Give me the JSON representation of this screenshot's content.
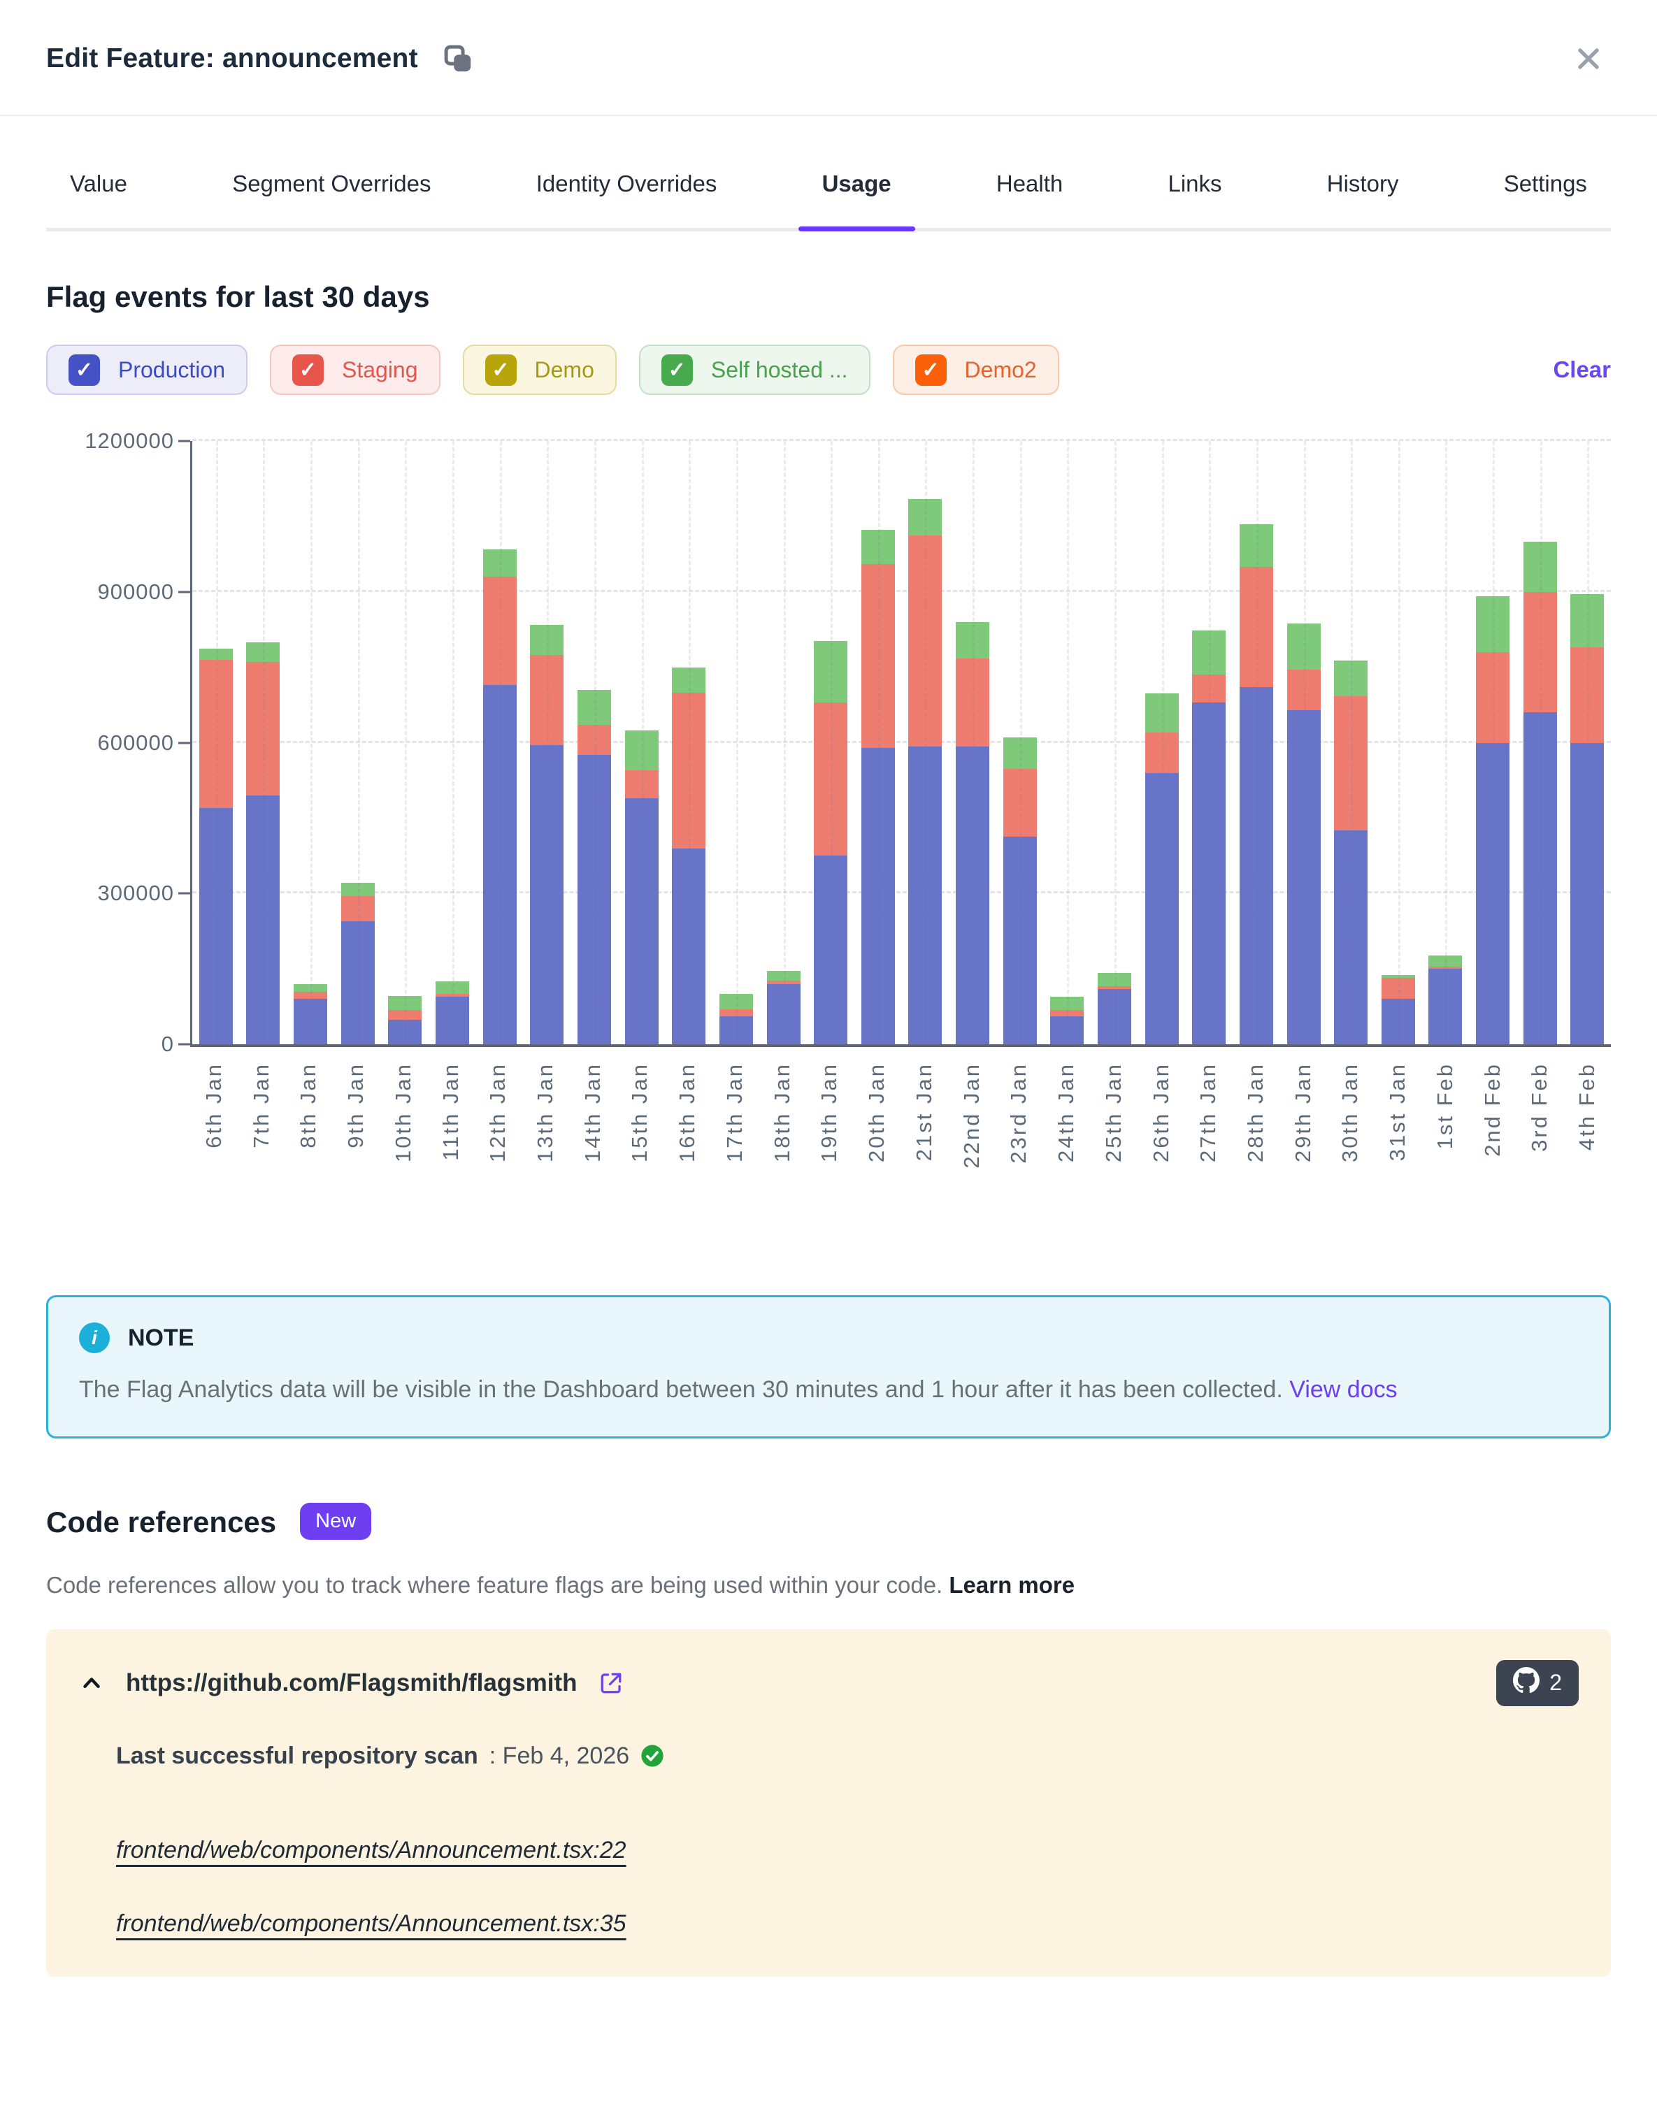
{
  "modal": {
    "title": "Edit Feature: announcement"
  },
  "tabs": {
    "items": [
      "Value",
      "Segment Overrides",
      "Identity Overrides",
      "Usage",
      "Health",
      "Links",
      "History",
      "Settings"
    ],
    "active": "Usage"
  },
  "usage": {
    "heading": "Flag events for last 30 days",
    "clear_label": "Clear",
    "legend": [
      {
        "label": "Production",
        "checkbox": "#4552c5",
        "text": "#3b4bc5",
        "bg": "#ecedf9",
        "border": "#c8cdef"
      },
      {
        "label": "Staging",
        "checkbox": "#e8564b",
        "text": "#e2574d",
        "bg": "#fdeceb",
        "border": "#f7c5c0"
      },
      {
        "label": "Demo",
        "checkbox": "#b8a40b",
        "text": "#a59a10",
        "bg": "#faf6e0",
        "border": "#e5dc9e"
      },
      {
        "label": "Self hosted ...",
        "checkbox": "#47ab4d",
        "text": "#49a04f",
        "bg": "#edf7ed",
        "border": "#c2e2c3"
      },
      {
        "label": "Demo2",
        "checkbox": "#fb5f07",
        "text": "#e8622b",
        "bg": "#fdefe5",
        "border": "#fac9a9"
      }
    ]
  },
  "chart_data": {
    "type": "bar",
    "stacked": true,
    "title": "Flag events for last 30 days",
    "categories": [
      "6th Jan",
      "7th Jan",
      "8th Jan",
      "9th Jan",
      "10th Jan",
      "11th Jan",
      "12th Jan",
      "13th Jan",
      "14th Jan",
      "15th Jan",
      "16th Jan",
      "17th Jan",
      "18th Jan",
      "19th Jan",
      "20th Jan",
      "21st Jan",
      "22nd Jan",
      "23rd Jan",
      "24th Jan",
      "25th Jan",
      "26th Jan",
      "27th Jan",
      "28th Jan",
      "29th Jan",
      "30th Jan",
      "31st Jan",
      "1st Feb",
      "2nd Feb",
      "3rd Feb",
      "4th Feb"
    ],
    "series": [
      {
        "name": "Production",
        "color": "#6874c8",
        "values": [
          470000,
          495000,
          90000,
          245000,
          48000,
          95000,
          715000,
          595000,
          575000,
          490000,
          390000,
          55000,
          120000,
          375000,
          590000,
          592000,
          592000,
          413000,
          55000,
          110000,
          540000,
          680000,
          710000,
          665000,
          425000,
          90000,
          150000,
          600000,
          660000,
          600000
        ]
      },
      {
        "name": "Staging",
        "color": "#ee7d70",
        "values": [
          295000,
          265000,
          15000,
          50000,
          20000,
          5000,
          215000,
          180000,
          60000,
          55000,
          310000,
          15000,
          6000,
          305000,
          365000,
          420000,
          176000,
          135000,
          13000,
          5000,
          80000,
          55000,
          240000,
          80000,
          268000,
          42000,
          5000,
          180000,
          240000,
          190000
        ]
      },
      {
        "name": "Self hosted ...",
        "color": "#7fc97b",
        "values": [
          22000,
          40000,
          15000,
          26000,
          28000,
          25000,
          55000,
          60000,
          70000,
          80000,
          50000,
          30000,
          20000,
          122000,
          68000,
          73000,
          72000,
          62000,
          26000,
          27000,
          78000,
          88000,
          84000,
          92000,
          70000,
          6000,
          22000,
          112000,
          100000,
          105000
        ]
      }
    ],
    "ylim": [
      0,
      1200000
    ],
    "y_ticks": [
      "0",
      "300000",
      "600000",
      "900000",
      "1200000"
    ],
    "xlabel": "",
    "ylabel": "",
    "grid": "dashed",
    "legend_position": "top",
    "x_label_rotation": -90
  },
  "note": {
    "label": "NOTE",
    "text": "The Flag Analytics data will be visible in the Dashboard between 30 minutes and 1 hour after it has been collected.",
    "link": "View docs"
  },
  "code_references": {
    "heading": "Code references",
    "badge": "New",
    "description": "Code references allow you to track where feature flags are being used within your code.",
    "learn_more": "Learn more",
    "repo": {
      "url": "https://github.com/Flagsmith/flagsmith",
      "count": "2",
      "scan_label": "Last successful repository scan",
      "scan_date": ": Feb 4, 2026",
      "files": [
        "frontend/web/components/Announcement.tsx:22",
        "frontend/web/components/Announcement.tsx:35"
      ]
    }
  }
}
